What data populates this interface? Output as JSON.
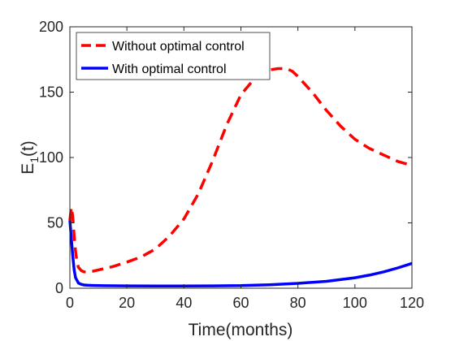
{
  "chart_data": {
    "type": "line",
    "title": "",
    "xlabel": "Time(months)",
    "ylabel_base": "E",
    "ylabel_sub": "1",
    "ylabel_suffix": "(t)",
    "xlim": [
      0,
      120
    ],
    "ylim": [
      0,
      200
    ],
    "xticks": [
      0,
      20,
      40,
      60,
      80,
      100,
      120
    ],
    "yticks": [
      0,
      50,
      100,
      150,
      200
    ],
    "grid": false,
    "legend_position": "top-left",
    "series": [
      {
        "name": "Without optimal control",
        "color": "#ff0000",
        "style": "dashed",
        "x": [
          0,
          0.5,
          1,
          1.5,
          2,
          2.5,
          3,
          4,
          5,
          6,
          8,
          10,
          15,
          20,
          25,
          30,
          35,
          40,
          45,
          50,
          55,
          60,
          65,
          70,
          73,
          76,
          78,
          80,
          85,
          90,
          95,
          100,
          105,
          110,
          115,
          120
        ],
        "y": [
          52,
          62,
          55,
          40,
          28,
          20,
          16,
          13.5,
          12.5,
          12.5,
          13,
          14,
          16.5,
          20,
          24,
          30,
          40,
          53,
          72,
          97,
          125,
          148,
          161,
          167,
          168,
          168,
          166,
          162,
          150,
          136,
          124,
          114,
          107,
          102,
          97,
          94
        ]
      },
      {
        "name": "With optimal control",
        "color": "#0000ff",
        "style": "solid",
        "x": [
          0,
          0.5,
          1,
          1.5,
          2,
          3,
          4,
          5,
          6,
          8,
          10,
          20,
          30,
          40,
          50,
          60,
          70,
          80,
          90,
          100,
          105,
          110,
          115,
          120
        ],
        "y": [
          52,
          38,
          25,
          14,
          8,
          4,
          3,
          2.5,
          2.3,
          2.1,
          2,
          1.8,
          1.7,
          1.7,
          1.8,
          2,
          2.7,
          3.7,
          5.3,
          8,
          10,
          12.5,
          15.5,
          19
        ]
      }
    ]
  }
}
